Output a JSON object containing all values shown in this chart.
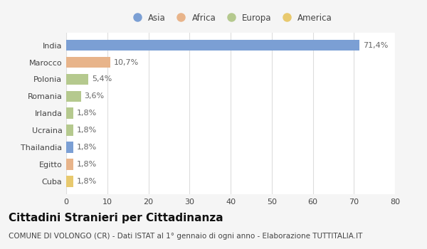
{
  "categories": [
    "India",
    "Marocco",
    "Polonia",
    "Romania",
    "Irlanda",
    "Ucraina",
    "Thailandia",
    "Egitto",
    "Cuba"
  ],
  "values": [
    71.4,
    10.7,
    5.4,
    3.6,
    1.8,
    1.8,
    1.8,
    1.8,
    1.8
  ],
  "labels": [
    "71,4%",
    "10,7%",
    "5,4%",
    "3,6%",
    "1,8%",
    "1,8%",
    "1,8%",
    "1,8%",
    "1,8%"
  ],
  "colors": [
    "#7b9fd4",
    "#e8b48a",
    "#b5c98e",
    "#b5c98e",
    "#b5c98e",
    "#b5c98e",
    "#7b9fd4",
    "#e8b48a",
    "#e8c96e"
  ],
  "legend_labels": [
    "Asia",
    "Africa",
    "Europa",
    "America"
  ],
  "legend_colors": [
    "#7b9fd4",
    "#e8b48a",
    "#b5c98e",
    "#e8c96e"
  ],
  "xlim": [
    0,
    80
  ],
  "xticks": [
    0,
    10,
    20,
    30,
    40,
    50,
    60,
    70,
    80
  ],
  "title": "Cittadini Stranieri per Cittadinanza",
  "subtitle": "COMUNE DI VOLONGO (CR) - Dati ISTAT al 1° gennaio di ogni anno - Elaborazione TUTTITALIA.IT",
  "background_color": "#f5f5f5",
  "bar_background": "#ffffff",
  "grid_color": "#dddddd",
  "title_fontsize": 11,
  "subtitle_fontsize": 7.5,
  "label_fontsize": 8,
  "tick_fontsize": 8,
  "legend_fontsize": 8.5
}
